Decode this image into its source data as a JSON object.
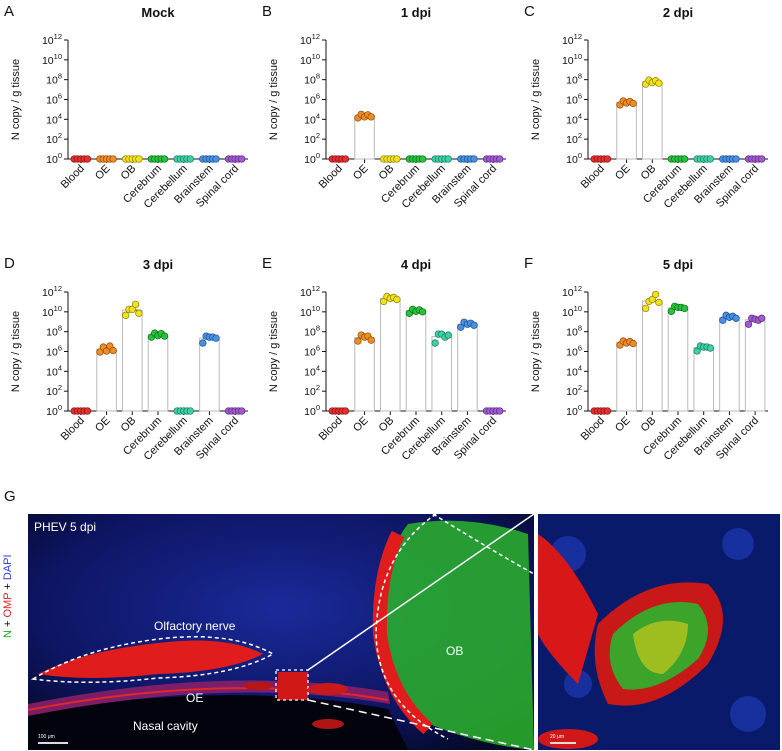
{
  "chart_data": [
    {
      "panel": "A",
      "type": "scatter",
      "title": "Mock",
      "ylabel": "N  copy / g  tissue",
      "categories": [
        "Blood",
        "OE",
        "OB",
        "Cerebrum",
        "Cerebellum",
        "Brainstem",
        "Spinal cord"
      ],
      "yscale": "log10",
      "ylim": [
        1,
        1000000000000.0
      ],
      "yticks_exp": [
        0,
        2,
        4,
        6,
        8,
        10,
        12
      ],
      "log10_values": [
        [
          0,
          0,
          0,
          0,
          0
        ],
        [
          0,
          0,
          0,
          0,
          0
        ],
        [
          0,
          0,
          0,
          0,
          0
        ],
        [
          0,
          0,
          0,
          0,
          0
        ],
        [
          0,
          0,
          0,
          0,
          0
        ],
        [
          0,
          0,
          0,
          0,
          0
        ],
        [
          0,
          0,
          0,
          0,
          0
        ]
      ]
    },
    {
      "panel": "B",
      "type": "scatter",
      "title": "1 dpi",
      "ylabel": "N  copy / g  tissue",
      "categories": [
        "Blood",
        "OE",
        "OB",
        "Cerebrum",
        "Cerebellum",
        "Brainstem",
        "Spinal cord"
      ],
      "yscale": "log10",
      "ylim": [
        1,
        1000000000000.0
      ],
      "yticks_exp": [
        0,
        2,
        4,
        6,
        8,
        10,
        12
      ],
      "log10_values": [
        [
          0,
          0,
          0,
          0,
          0
        ],
        [
          4.3,
          4.35,
          4.4,
          4.3,
          4.4
        ],
        [
          0,
          0,
          0,
          0,
          0
        ],
        [
          0,
          0,
          0,
          0,
          0
        ],
        [
          0,
          0,
          0,
          0,
          0
        ],
        [
          0,
          0,
          0,
          0,
          0
        ],
        [
          0,
          0,
          0,
          0,
          0
        ]
      ]
    },
    {
      "panel": "C",
      "type": "scatter",
      "title": "2 dpi",
      "ylabel": "N  copy / g  tissue",
      "categories": [
        "Blood",
        "OE",
        "OB",
        "Cerebrum",
        "Cerebellum",
        "Brainstem",
        "Spinal cord"
      ],
      "yscale": "log10",
      "ylim": [
        1,
        1000000000000.0
      ],
      "yticks_exp": [
        0,
        2,
        4,
        6,
        8,
        10,
        12
      ],
      "log10_values": [
        [
          0,
          0,
          0,
          0,
          0
        ],
        [
          5.6,
          5.7,
          5.8,
          5.65,
          5.75
        ],
        [
          7.7,
          7.8,
          7.85,
          7.75,
          7.8
        ],
        [
          0,
          0,
          0,
          0,
          0
        ],
        [
          0,
          0,
          0,
          0,
          0
        ],
        [
          0,
          0,
          0,
          0,
          0
        ],
        [
          0,
          0,
          0,
          0,
          0
        ]
      ]
    },
    {
      "panel": "D",
      "type": "scatter",
      "title": "3 dpi",
      "ylabel": "N  copy / g  tissue",
      "categories": [
        "Blood",
        "OE",
        "OB",
        "Cerebrum",
        "Cerebellum",
        "Brainstem",
        "Spinal cord"
      ],
      "yscale": "log10",
      "ylim": [
        1,
        1000000000000.0
      ],
      "yticks_exp": [
        0,
        2,
        4,
        6,
        8,
        10,
        12
      ],
      "log10_values": [
        [
          0,
          0,
          0,
          0,
          0
        ],
        [
          6.1,
          6.3,
          6.2,
          6.4,
          6.25
        ],
        [
          9.8,
          10.1,
          10.4,
          10.6,
          10.0
        ],
        [
          7.6,
          7.7,
          7.75,
          7.65,
          7.7
        ],
        [
          0,
          0,
          0,
          0,
          0
        ],
        [
          7.0,
          7.4,
          7.6,
          7.3,
          7.5
        ],
        [
          0,
          0,
          0,
          0,
          0
        ]
      ]
    },
    {
      "panel": "E",
      "type": "scatter",
      "title": "4 dpi",
      "ylabel": "N  copy / g  tissue",
      "categories": [
        "Blood",
        "OE",
        "OB",
        "Cerebrum",
        "Cerebellum",
        "Brainstem",
        "Spinal cord"
      ],
      "yscale": "log10",
      "ylim": [
        1,
        1000000000000.0
      ],
      "yticks_exp": [
        0,
        2,
        4,
        6,
        8,
        10,
        12
      ],
      "log10_values": [
        [
          0,
          0,
          0,
          0,
          0
        ],
        [
          7.2,
          7.5,
          7.6,
          7.4,
          7.3
        ],
        [
          11.2,
          11.4,
          11.5,
          11.3,
          11.4
        ],
        [
          10.0,
          10.1,
          10.2,
          10.05,
          10.15
        ],
        [
          7.0,
          7.6,
          7.9,
          7.3,
          7.8
        ],
        [
          8.6,
          8.8,
          8.9,
          8.7,
          8.8
        ],
        [
          0,
          0,
          0,
          0,
          0
        ]
      ]
    },
    {
      "panel": "F",
      "type": "scatter",
      "title": "5 dpi",
      "ylabel": "N  copy / g  tissue",
      "categories": [
        "Blood",
        "OE",
        "OB",
        "Cerebrum",
        "Cerebellum",
        "Brainstem",
        "Spinal cord"
      ],
      "yscale": "log10",
      "ylim": [
        1,
        1000000000000.0
      ],
      "yticks_exp": [
        0,
        2,
        4,
        6,
        8,
        10,
        12
      ],
      "log10_values": [
        [
          0,
          0,
          0,
          0,
          0
        ],
        [
          6.8,
          6.9,
          7.0,
          6.85,
          6.95
        ],
        [
          10.5,
          10.9,
          11.4,
          11.6,
          11.1
        ],
        [
          10.2,
          10.4,
          10.6,
          10.3,
          10.5
        ],
        [
          6.2,
          6.4,
          6.6,
          6.3,
          6.5
        ],
        [
          9.3,
          9.5,
          9.6,
          9.4,
          9.5
        ],
        [
          8.9,
          9.2,
          9.4,
          9.0,
          9.5
        ]
      ]
    }
  ],
  "category_colors": [
    "#e03030",
    "#f08c28",
    "#f2e21e",
    "#25c43c",
    "#3ecfa6",
    "#4a90e2",
    "#a05ad0"
  ],
  "category_outline_colors": [
    "#8a1010",
    "#8a4a08",
    "#8a7f00",
    "#0a6a18",
    "#157a5e",
    "#174f8a",
    "#5a2a80"
  ],
  "panel_g": {
    "letter": "G",
    "stain": {
      "n": "N",
      "plus1": " + ",
      "omp": "OMP",
      "plus2": " + ",
      "dapi": "DAPI"
    },
    "caption": "PHEV  5 dpi",
    "labels": {
      "olfactory_nerve": "Olfactory nerve",
      "oe": "OE",
      "ob": "OB",
      "nasal_cavity": "Nasal cavity"
    },
    "scale_left": "100 μm",
    "scale_right": "20 μm"
  }
}
